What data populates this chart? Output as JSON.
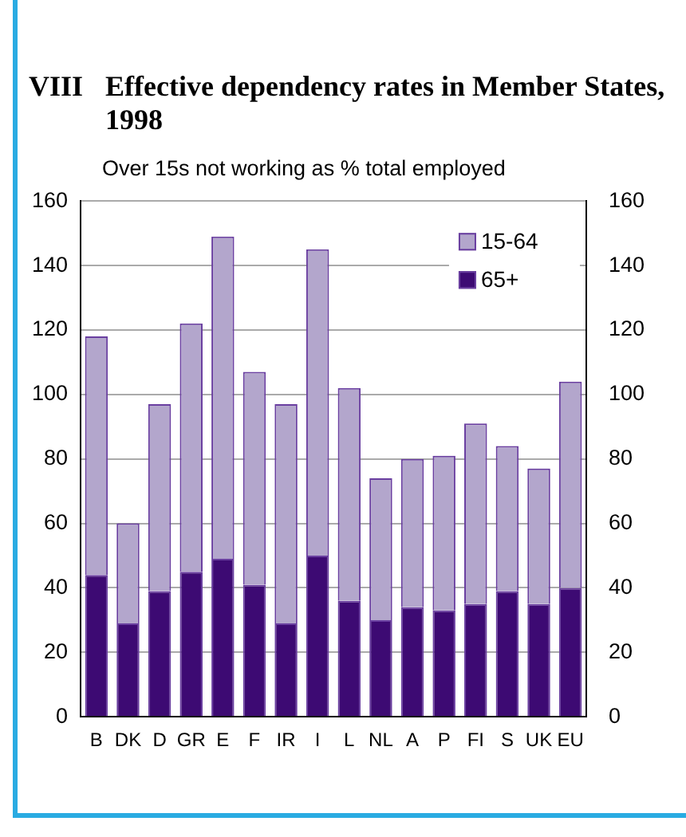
{
  "chart_data": {
    "type": "bar",
    "title": "VIII  Effective dependency rates in Member States, 1998",
    "subtitle": "Over 15s not working as % total employed",
    "categories": [
      "B",
      "DK",
      "D",
      "GR",
      "E",
      "F",
      "IR",
      "I",
      "L",
      "NL",
      "A",
      "P",
      "FI",
      "S",
      "UK",
      "EU"
    ],
    "stacked": true,
    "series": [
      {
        "name": "65+",
        "color": "#3d0a73",
        "values": [
          44,
          29,
          39,
          45,
          49,
          41,
          29,
          50,
          36,
          30,
          34,
          33,
          35,
          39,
          35,
          40
        ]
      },
      {
        "name": "15-64",
        "color": "#b3a6cc",
        "values": [
          74,
          31,
          58,
          77,
          100,
          66,
          68,
          95,
          66,
          44,
          46,
          48,
          56,
          45,
          42,
          64
        ]
      }
    ],
    "ylim": [
      0,
      160
    ],
    "yticks": [
      0,
      20,
      40,
      60,
      80,
      100,
      120,
      140,
      160
    ],
    "y2lim": [
      0,
      160
    ],
    "y2ticks": [
      0,
      20,
      40,
      60,
      80,
      100,
      120,
      140,
      160
    ],
    "grid": "y",
    "legend": "top right"
  }
}
